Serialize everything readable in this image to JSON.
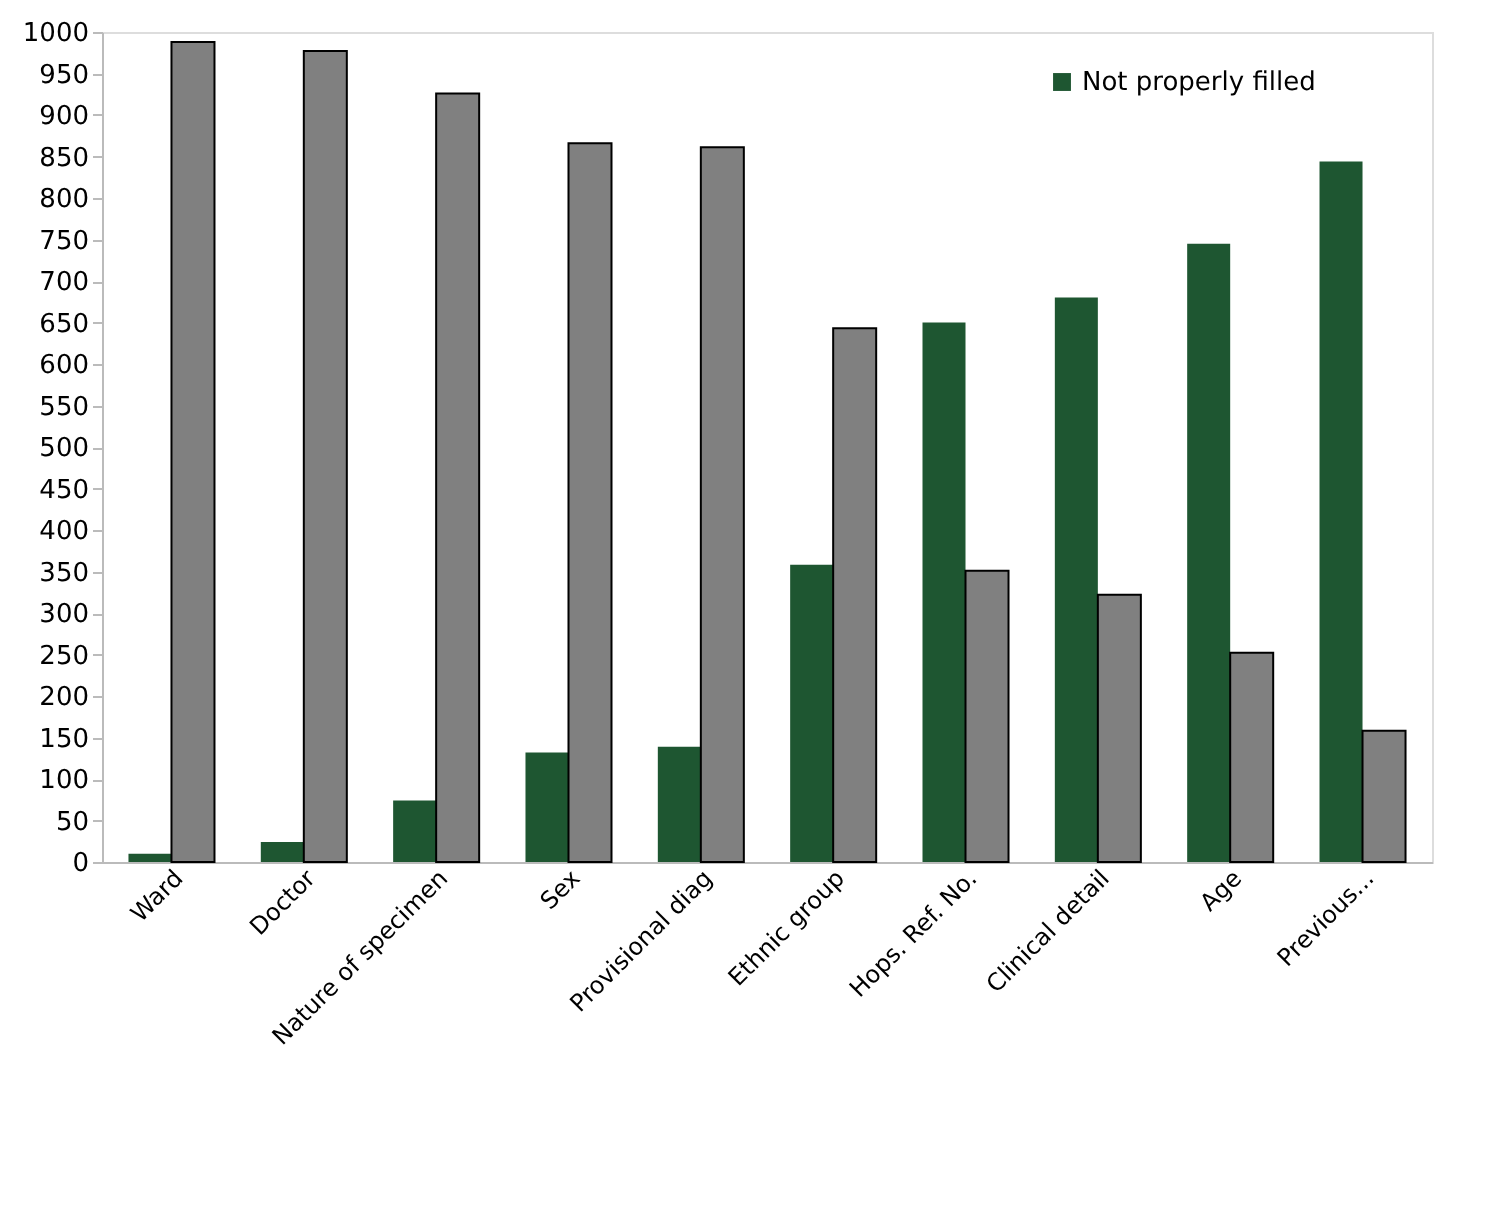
{
  "chart_data": {
    "type": "bar",
    "categories": [
      "Ward",
      "Doctor",
      "Nature of specimen",
      "Sex",
      "Provisional diag",
      "Ethnic group",
      "Hops. Ref. No.",
      "Clinical detail",
      "Age",
      "Previous..."
    ],
    "series": [
      {
        "name": "Not properly filled",
        "color": "#1e5631",
        "values": [
          10,
          24,
          74,
          132,
          139,
          358,
          650,
          680,
          745,
          844
        ]
      },
      {
        "color": "#808080",
        "values": [
          988,
          977,
          926,
          866,
          861,
          643,
          351,
          322,
          252,
          158
        ]
      }
    ],
    "ylim": [
      0,
      1000
    ],
    "yticks": [
      0,
      50,
      100,
      150,
      200,
      250,
      300,
      350,
      400,
      450,
      500,
      550,
      600,
      650,
      700,
      750,
      800,
      850,
      900,
      950,
      1000
    ],
    "grid": false,
    "legend": "top right"
  }
}
